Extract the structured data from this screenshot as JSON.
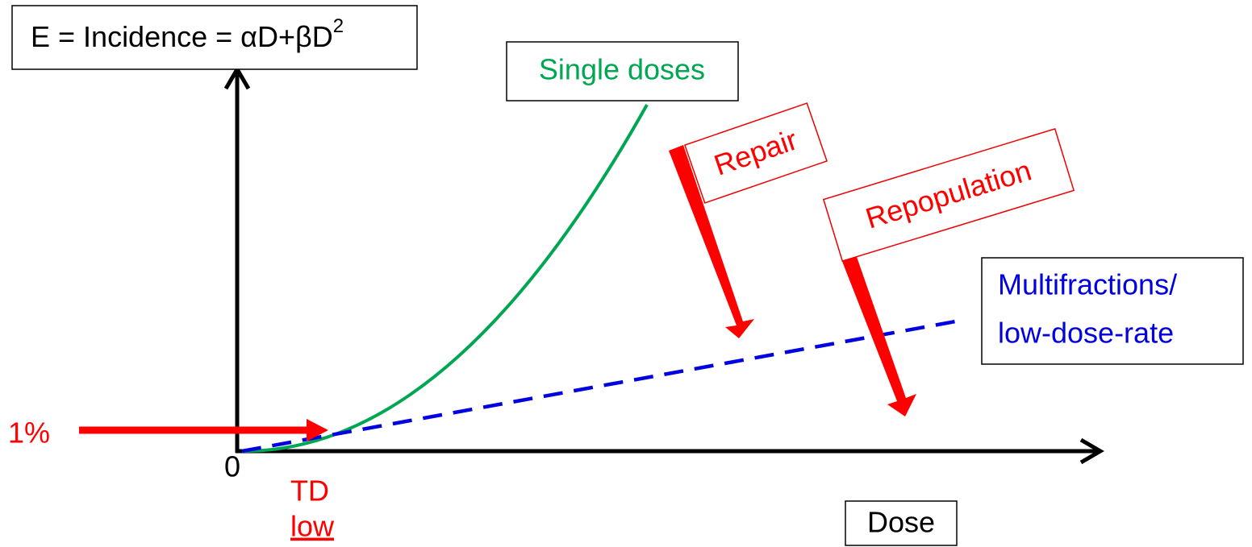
{
  "y_axis_label": {
    "text": "E = Incidence = αD+βD",
    "superscript": "2"
  },
  "x_axis_label": "Dose",
  "origin_label": "0",
  "threshold_marker": "1%",
  "threshold_label": {
    "line1": "TD",
    "line2": "low"
  },
  "curves": {
    "single": "Single doses",
    "multi": {
      "line1": "Multifractions/",
      "line2": "low-dose-rate"
    }
  },
  "effects": {
    "repair": "Repair",
    "repopulation": "Repopulation"
  }
}
